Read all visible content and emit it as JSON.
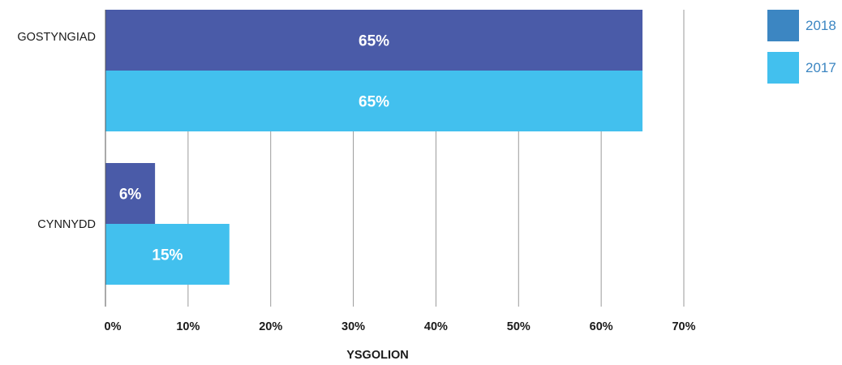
{
  "chart_data": {
    "type": "bar",
    "orientation": "horizontal",
    "categories": [
      "GOSTYNGIAD",
      "CYNNYDD"
    ],
    "series": [
      {
        "name": "2018",
        "values": [
          65,
          6
        ],
        "labels": [
          "65%",
          "6%"
        ],
        "color": "#4a5ba8",
        "legend_color": "#3c86c2"
      },
      {
        "name": "2017",
        "values": [
          65,
          15
        ],
        "labels": [
          "65%",
          "15%"
        ],
        "color": "#42c0ee",
        "legend_color": "#42c0ee"
      }
    ],
    "xlabel": "YSGOLION",
    "xlim": [
      0,
      70
    ],
    "xticks": [
      0,
      10,
      20,
      30,
      40,
      50,
      60,
      70
    ],
    "xtick_labels": [
      "0%",
      "10%",
      "20%",
      "30%",
      "40%",
      "50%",
      "60%",
      "70%"
    ],
    "grid": true,
    "legend_position": "top-right",
    "legend_text_color": "#3c86c2",
    "gridline_color": "#9a9a9a",
    "axis_line_color": "#555555"
  }
}
